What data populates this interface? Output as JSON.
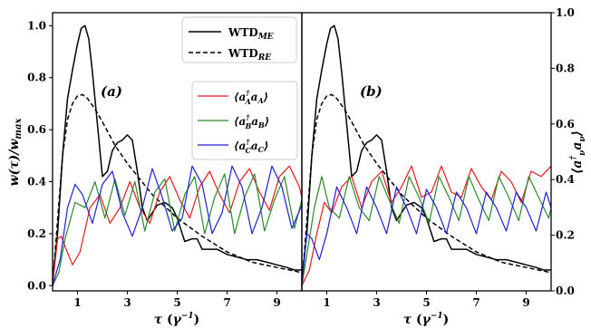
{
  "chart_data": {
    "type": "line",
    "x_label": "τ (γ⁻¹)",
    "y_left_label": "w(τ)/w_max",
    "y_right_label": "⟨a†_ν a_ν⟩",
    "x_range": [
      0,
      10
    ],
    "y_left_range": [
      -0.02,
      1.05
    ],
    "y_right_range": [
      0,
      1.0
    ],
    "x_ticks": [
      "1",
      "3",
      "5",
      "7",
      "9"
    ],
    "y_left_ticks": [
      "0.0",
      "0.2",
      "0.4",
      "0.6",
      "0.8",
      "1.0"
    ],
    "y_right_ticks": [
      "0.0",
      "0.2",
      "0.4",
      "0.6",
      "0.8",
      "1.0"
    ],
    "grid": false,
    "legend_top": {
      "placement": "top-right",
      "entries": [
        {
          "label": "WTD",
          "sub": "ME",
          "style": "solid",
          "color": "#000000"
        },
        {
          "label": "WTD",
          "sub": "RE",
          "style": "dashed",
          "color": "#000000"
        }
      ]
    },
    "legend_mid": {
      "placement": "upper-right",
      "entries": [
        {
          "label": "⟨a†_A a_A⟩",
          "color": "#e41a1c"
        },
        {
          "label": "⟨a†_B a_B⟩",
          "color": "#2a8a2a"
        },
        {
          "label": "⟨a†_C a_C⟩",
          "color": "#1f1fd6"
        }
      ]
    },
    "panels": [
      {
        "label": "(a)",
        "series": [
          {
            "name": "WTD_ME",
            "style": "solid",
            "color": "#000000",
            "x": [
              0,
              0.2,
              0.4,
              0.6,
              0.8,
              1.0,
              1.15,
              1.3,
              1.45,
              1.6,
              1.8,
              2.0,
              2.2,
              2.4,
              2.6,
              2.8,
              3.0,
              3.2,
              3.4,
              3.6,
              3.8,
              4.0,
              4.2,
              4.5,
              4.8,
              5.0,
              5.3,
              5.6,
              5.8,
              6.0,
              6.3,
              6.6,
              7.0,
              7.4,
              7.8,
              8.2,
              8.6,
              9.0,
              9.4,
              9.7,
              10.0
            ],
            "y": [
              0.02,
              0.2,
              0.5,
              0.72,
              0.83,
              0.93,
              0.99,
              1.0,
              0.95,
              0.82,
              0.62,
              0.42,
              0.44,
              0.52,
              0.55,
              0.56,
              0.58,
              0.56,
              0.44,
              0.3,
              0.25,
              0.28,
              0.31,
              0.32,
              0.3,
              0.26,
              0.17,
              0.18,
              0.18,
              0.14,
              0.14,
              0.14,
              0.12,
              0.11,
              0.1,
              0.1,
              0.09,
              0.08,
              0.07,
              0.06,
              0.06
            ]
          },
          {
            "name": "WTD_RE",
            "style": "dashed",
            "color": "#000000",
            "x": [
              0,
              0.2,
              0.4,
              0.6,
              0.8,
              1.0,
              1.2,
              1.4,
              1.7,
              2.0,
              2.5,
              3.0,
              3.5,
              4.0,
              5.0,
              6.0,
              7.0,
              8.0,
              9.0,
              10.0
            ],
            "y": [
              0.0,
              0.25,
              0.5,
              0.64,
              0.7,
              0.73,
              0.735,
              0.72,
              0.68,
              0.63,
              0.54,
              0.47,
              0.41,
              0.35,
              0.26,
              0.19,
              0.13,
              0.09,
              0.07,
              0.05
            ]
          },
          {
            "name": "⟨a†_A a_A⟩",
            "style": "solid",
            "color": "#e41a1c",
            "x": [
              0,
              0.2,
              0.35,
              0.5,
              0.8,
              1.1,
              1.5,
              1.9,
              2.3,
              2.7,
              3.1,
              3.5,
              3.9,
              4.3,
              4.7,
              5.1,
              5.5,
              5.9,
              6.3,
              6.7,
              7.1,
              7.5,
              7.9,
              8.3,
              8.7,
              9.1,
              9.5,
              9.9,
              10.0
            ],
            "y": [
              0.0,
              0.18,
              0.19,
              0.15,
              0.08,
              0.13,
              0.3,
              0.35,
              0.24,
              0.3,
              0.4,
              0.3,
              0.24,
              0.36,
              0.42,
              0.33,
              0.26,
              0.38,
              0.44,
              0.35,
              0.28,
              0.4,
              0.45,
              0.36,
              0.29,
              0.42,
              0.46,
              0.38,
              0.34
            ]
          },
          {
            "name": "⟨a†_B a_B⟩",
            "style": "solid",
            "color": "#2a8a2a",
            "x": [
              0,
              0.25,
              0.5,
              0.9,
              1.3,
              1.7,
              2.1,
              2.5,
              2.9,
              3.3,
              3.7,
              4.1,
              4.5,
              4.9,
              5.3,
              5.7,
              6.1,
              6.5,
              6.9,
              7.3,
              7.7,
              8.1,
              8.5,
              8.9,
              9.3,
              9.7,
              10.0
            ],
            "y": [
              0.0,
              0.05,
              0.18,
              0.32,
              0.3,
              0.4,
              0.26,
              0.41,
              0.27,
              0.4,
              0.21,
              0.36,
              0.41,
              0.21,
              0.35,
              0.42,
              0.2,
              0.34,
              0.43,
              0.2,
              0.34,
              0.43,
              0.21,
              0.33,
              0.42,
              0.22,
              0.33
            ]
          },
          {
            "name": "⟨a†_C a_C⟩",
            "style": "solid",
            "color": "#1f1fd6",
            "x": [
              0,
              0.3,
              0.6,
              0.9,
              1.2,
              1.6,
              2.0,
              2.4,
              2.8,
              3.2,
              3.6,
              4.0,
              4.4,
              4.8,
              5.2,
              5.6,
              6.0,
              6.4,
              6.8,
              7.2,
              7.6,
              8.0,
              8.4,
              8.8,
              9.2,
              9.6,
              10.0
            ],
            "y": [
              0.0,
              0.1,
              0.3,
              0.39,
              0.35,
              0.24,
              0.39,
              0.44,
              0.28,
              0.19,
              0.3,
              0.45,
              0.34,
              0.21,
              0.26,
              0.46,
              0.39,
              0.2,
              0.28,
              0.46,
              0.38,
              0.2,
              0.3,
              0.46,
              0.38,
              0.22,
              0.31
            ]
          }
        ]
      },
      {
        "label": "(b)",
        "series": [
          {
            "name": "WTD_ME",
            "style": "solid",
            "color": "#000000",
            "x": [
              0,
              0.2,
              0.4,
              0.6,
              0.8,
              1.0,
              1.15,
              1.3,
              1.45,
              1.6,
              1.8,
              2.0,
              2.2,
              2.4,
              2.6,
              2.8,
              3.0,
              3.2,
              3.4,
              3.6,
              3.8,
              4.0,
              4.2,
              4.5,
              4.8,
              5.0,
              5.3,
              5.6,
              5.8,
              6.0,
              6.3,
              6.6,
              7.0,
              7.4,
              7.8,
              8.2,
              8.6,
              9.0,
              9.4,
              9.7,
              10.0
            ],
            "y": [
              0.02,
              0.2,
              0.5,
              0.72,
              0.83,
              0.93,
              0.99,
              1.0,
              0.95,
              0.82,
              0.62,
              0.42,
              0.44,
              0.52,
              0.55,
              0.56,
              0.58,
              0.56,
              0.44,
              0.3,
              0.25,
              0.28,
              0.31,
              0.32,
              0.3,
              0.26,
              0.17,
              0.18,
              0.18,
              0.14,
              0.14,
              0.14,
              0.12,
              0.11,
              0.1,
              0.1,
              0.09,
              0.08,
              0.07,
              0.06,
              0.06
            ]
          },
          {
            "name": "WTD_RE",
            "style": "dashed",
            "color": "#000000",
            "x": [
              0,
              0.2,
              0.4,
              0.6,
              0.8,
              1.0,
              1.2,
              1.4,
              1.7,
              2.0,
              2.5,
              3.0,
              3.5,
              4.0,
              5.0,
              6.0,
              7.0,
              8.0,
              9.0,
              10.0
            ],
            "y": [
              0.0,
              0.25,
              0.5,
              0.64,
              0.7,
              0.73,
              0.735,
              0.72,
              0.68,
              0.63,
              0.54,
              0.47,
              0.41,
              0.35,
              0.26,
              0.19,
              0.13,
              0.09,
              0.07,
              0.05
            ]
          },
          {
            "name": "⟨a†_A a_A⟩",
            "style": "solid",
            "color": "#e41a1c",
            "x": [
              0,
              0.3,
              0.6,
              0.9,
              1.2,
              1.6,
              2.0,
              2.4,
              2.8,
              3.2,
              3.6,
              4.0,
              4.4,
              4.8,
              5.2,
              5.6,
              6.0,
              6.4,
              6.8,
              7.2,
              7.6,
              8.0,
              8.4,
              8.8,
              9.2,
              9.6,
              10.0
            ],
            "y": [
              0.0,
              0.06,
              0.2,
              0.32,
              0.28,
              0.38,
              0.42,
              0.3,
              0.4,
              0.44,
              0.32,
              0.38,
              0.46,
              0.34,
              0.36,
              0.46,
              0.36,
              0.34,
              0.45,
              0.38,
              0.33,
              0.44,
              0.4,
              0.32,
              0.44,
              0.42,
              0.46
            ]
          },
          {
            "name": "⟨a†_B a_B⟩",
            "style": "solid",
            "color": "#2a8a2a",
            "x": [
              0,
              0.25,
              0.5,
              0.8,
              1.1,
              1.5,
              1.9,
              2.3,
              2.7,
              3.1,
              3.5,
              3.9,
              4.3,
              4.7,
              5.1,
              5.5,
              5.9,
              6.3,
              6.7,
              7.1,
              7.5,
              7.9,
              8.3,
              8.7,
              9.1,
              9.5,
              9.9,
              10.0
            ],
            "y": [
              0.0,
              0.15,
              0.3,
              0.42,
              0.3,
              0.26,
              0.42,
              0.3,
              0.25,
              0.42,
              0.33,
              0.24,
              0.42,
              0.34,
              0.24,
              0.42,
              0.34,
              0.25,
              0.42,
              0.33,
              0.25,
              0.42,
              0.34,
              0.25,
              0.42,
              0.34,
              0.26,
              0.3
            ]
          },
          {
            "name": "⟨a†_C a_C⟩",
            "style": "solid",
            "color": "#1f1fd6",
            "x": [
              0,
              0.2,
              0.4,
              0.7,
              1.0,
              1.4,
              1.8,
              2.2,
              2.6,
              3.0,
              3.4,
              3.8,
              4.2,
              4.6,
              5.0,
              5.4,
              5.8,
              6.2,
              6.6,
              7.0,
              7.4,
              7.8,
              8.2,
              8.6,
              9.0,
              9.4,
              9.8,
              10.0
            ],
            "y": [
              0.0,
              0.2,
              0.18,
              0.1,
              0.2,
              0.38,
              0.3,
              0.2,
              0.38,
              0.3,
              0.2,
              0.38,
              0.3,
              0.2,
              0.37,
              0.3,
              0.2,
              0.36,
              0.3,
              0.2,
              0.36,
              0.3,
              0.21,
              0.36,
              0.3,
              0.21,
              0.36,
              0.3
            ]
          }
        ]
      }
    ]
  }
}
